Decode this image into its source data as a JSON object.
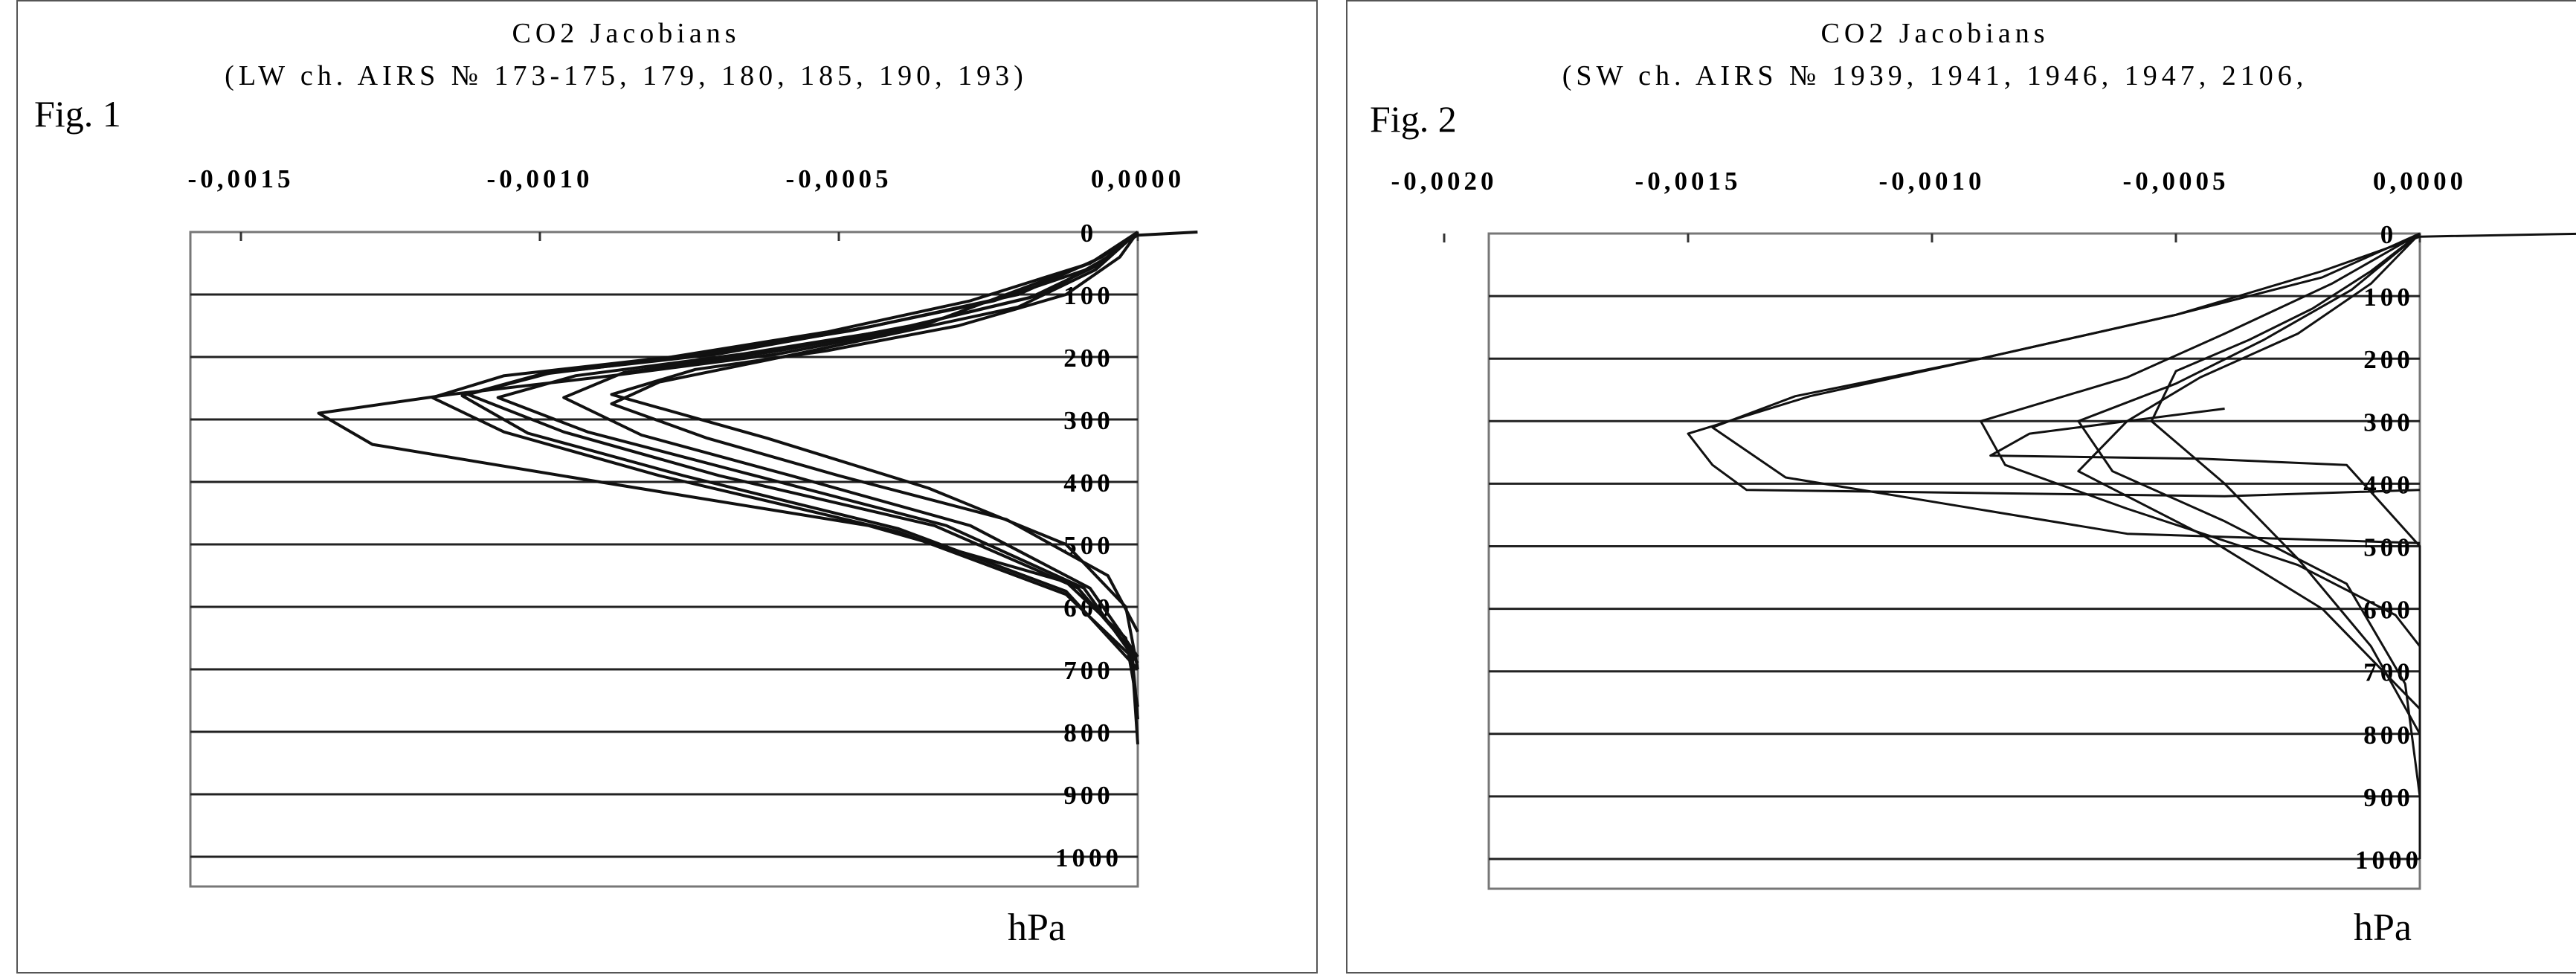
{
  "chart_data": [
    {
      "type": "line",
      "fig_label": "Fig. 1",
      "title": "CO2 Jacobians",
      "subtitle": "(LW ch. AIRS № 173-175, 179, 180, 185, 190, 193)",
      "xlabel": "",
      "ylabel": "hPa",
      "xlim": [
        -0.0015,
        0.0
      ],
      "ylim": [
        1000,
        0
      ],
      "x_ticks": [
        "-0,0015",
        "-0,0010",
        "-0,0005",
        "0,0000"
      ],
      "x_tick_values": [
        -0.0015,
        -0.001,
        -0.0005,
        0.0
      ],
      "y_ticks": [
        "0",
        "100",
        "200",
        "300",
        "400",
        "500",
        "600",
        "700",
        "800",
        "900",
        "1000"
      ],
      "y_tick_values": [
        0,
        100,
        200,
        300,
        400,
        500,
        600,
        700,
        800,
        900,
        1000
      ],
      "grid": "horizontal",
      "series": [
        {
          "x": [
            0.0001,
            0,
            -8e-05,
            -0.00022,
            -0.00036,
            -0.0006,
            -0.00088,
            -0.00115,
            -0.00137,
            -0.00128,
            -0.0009,
            -0.00045,
            -0.00012,
            -2e-05,
            0
          ],
          "y": [
            0,
            5,
            50,
            100,
            150,
            195,
            230,
            260,
            290,
            340,
            400,
            470,
            560,
            650,
            760
          ]
        },
        {
          "x": [
            0,
            -8e-05,
            -0.00028,
            -0.00052,
            -0.00078,
            -0.00106,
            -0.00118,
            -0.00106,
            -0.0008,
            -0.0004,
            -0.00012,
            -1e-05,
            0
          ],
          "y": [
            0,
            50,
            110,
            160,
            200,
            230,
            265,
            320,
            390,
            480,
            580,
            680,
            820
          ]
        },
        {
          "x": [
            0,
            -6e-05,
            -0.0002,
            -0.00044,
            -0.0007,
            -0.00098,
            -0.00112,
            -0.00096,
            -0.0007,
            -0.00034,
            -0.0001,
            -1e-05,
            0
          ],
          "y": [
            0,
            40,
            100,
            150,
            195,
            225,
            260,
            320,
            390,
            470,
            570,
            670,
            780
          ]
        },
        {
          "x": [
            0,
            -5e-05,
            -0.00016,
            -0.00038,
            -0.0006,
            -0.00086,
            -0.00096,
            -0.00083,
            -0.00058,
            -0.00028,
            -8e-05,
            0
          ],
          "y": [
            0,
            40,
            100,
            150,
            190,
            225,
            265,
            325,
            390,
            470,
            570,
            680
          ]
        },
        {
          "x": [
            0,
            -7e-05,
            -0.0002,
            -0.00042,
            -0.00062,
            -0.0008,
            -0.00088,
            -0.00072,
            -0.0005,
            -0.00022,
            -5e-05,
            0
          ],
          "y": [
            0,
            60,
            120,
            165,
            205,
            240,
            275,
            330,
            390,
            460,
            550,
            640
          ]
        },
        {
          "x": [
            0,
            -3e-05,
            -0.00012,
            -0.0003,
            -0.00052,
            -0.00074,
            -0.00088,
            -0.00062,
            -0.00035,
            -0.00012,
            -2e-05,
            0
          ],
          "y": [
            0,
            40,
            100,
            150,
            190,
            220,
            260,
            330,
            410,
            500,
            600,
            700
          ]
        },
        {
          "x": [
            0,
            -6e-05,
            -0.00018,
            -0.0004,
            -0.00066,
            -0.00094,
            -0.00107,
            -0.00092,
            -0.00066,
            -0.00032,
            -9e-05,
            0
          ],
          "y": [
            0,
            50,
            105,
            155,
            195,
            230,
            265,
            320,
            385,
            470,
            570,
            690
          ]
        },
        {
          "x": [
            0,
            -7e-05,
            -0.00024,
            -0.00048,
            -0.00074,
            -0.001,
            -0.00113,
            -0.00102,
            -0.00076,
            -0.0004,
            -0.00012,
            0
          ],
          "y": [
            0,
            55,
            110,
            158,
            198,
            228,
            262,
            322,
            390,
            475,
            575,
            700
          ]
        }
      ]
    },
    {
      "type": "line",
      "fig_label": "Fig. 2",
      "title": "CO2 Jacobians",
      "subtitle": "(SW ch. AIRS № 1939, 1941, 1946, 1947, 2106,",
      "xlabel": "",
      "ylabel": "hPa",
      "xlim": [
        -0.002,
        0.0
      ],
      "ylim": [
        1000,
        0
      ],
      "x_ticks": [
        "-0,0020",
        "-0,0015",
        "-0,0010",
        "-0,0005",
        "0,0000"
      ],
      "x_tick_values": [
        -0.002,
        -0.0015,
        -0.001,
        -0.0005,
        0.0
      ],
      "y_ticks": [
        "0",
        "100",
        "200",
        "300",
        "400",
        "500",
        "600",
        "700",
        "800",
        "900",
        "1000"
      ],
      "y_tick_values": [
        0,
        100,
        200,
        300,
        400,
        500,
        600,
        700,
        800,
        900,
        1000
      ],
      "grid": "horizontal",
      "series": [
        {
          "x": [
            0.00035,
            0,
            -0.0002,
            -0.0005,
            -0.0009,
            -0.00125,
            -0.0015,
            -0.00145,
            -0.00138,
            -0.0004,
            0
          ],
          "y": [
            0,
            5,
            60,
            130,
            200,
            260,
            320,
            370,
            410,
            420,
            410
          ]
        },
        {
          "x": [
            0,
            -0.0002,
            -0.0005,
            -0.0009,
            -0.00128,
            -0.00145,
            -0.0013,
            -0.0006,
            0
          ],
          "y": [
            0,
            70,
            130,
            200,
            260,
            310,
            390,
            480,
            495
          ]
        },
        {
          "x": [
            0,
            -0.00018,
            -0.0004,
            -0.0006,
            -0.0009,
            -0.00085,
            -0.0006,
            -0.00025,
            -5e-05,
            0
          ],
          "y": [
            0,
            80,
            160,
            230,
            300,
            370,
            440,
            530,
            610,
            660
          ]
        },
        {
          "x": [
            0,
            -0.00014,
            -0.00032,
            -0.0005,
            -0.0007,
            -0.00063,
            -0.0004,
            -0.00015,
            -3e-05,
            0
          ],
          "y": [
            0,
            90,
            170,
            240,
            300,
            380,
            460,
            560,
            720,
            900
          ]
        },
        {
          "x": [
            0,
            -0.0001,
            -0.00025,
            -0.00045,
            -0.0006,
            -0.0007,
            -0.00045,
            -0.0002,
            0
          ],
          "y": [
            0,
            80,
            160,
            230,
            300,
            380,
            480,
            600,
            760
          ]
        },
        {
          "x": [
            0,
            -0.0001,
            -0.00022,
            -0.00035,
            -0.0005,
            -0.00055,
            -0.0004,
            -0.00025,
            -0.0001,
            0
          ],
          "y": [
            0,
            60,
            120,
            170,
            220,
            300,
            400,
            520,
            660,
            800
          ]
        },
        {
          "x": [
            -0.0004,
            -0.0006,
            -0.0008,
            -0.00088,
            -0.00045,
            -0.00015,
            0,
            0
          ],
          "y": [
            280,
            300,
            320,
            355,
            360,
            370,
            500,
            1000
          ]
        }
      ]
    }
  ]
}
